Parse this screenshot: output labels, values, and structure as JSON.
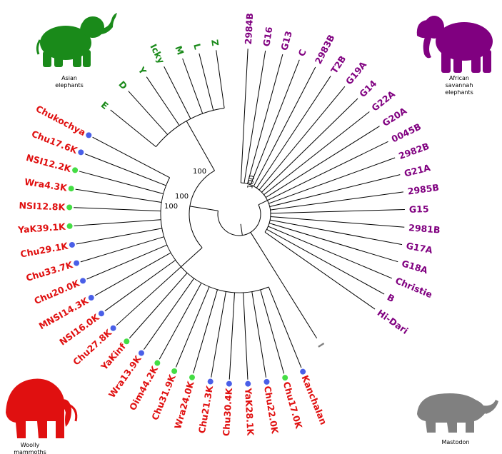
{
  "colors": {
    "asian": "#1a8a1a",
    "african": "#800080",
    "mammoth": "#e01010",
    "mastodon": "#808080",
    "branch": "#000000",
    "dot_blue": "#4a5fe8",
    "dot_green": "#44dd44"
  },
  "groups": {
    "asian": "Asian elephants",
    "african": "African savannah elephants",
    "mammoth": "Woolly mammoths",
    "mastodon": "Mastodon"
  },
  "group_lines": {
    "asian": [
      "Asian",
      "elephants"
    ],
    "african": [
      "African",
      "savannah",
      "elephants"
    ],
    "mammoth": [
      "Woolly",
      "mammoths"
    ],
    "mastodon": [
      "Mastodon"
    ]
  },
  "bootstrap": [
    "100",
    "100",
    "100",
    "100"
  ],
  "taxa": [
    {
      "name": "2984B",
      "group": "african",
      "dot": null
    },
    {
      "name": "G16",
      "group": "african",
      "dot": null
    },
    {
      "name": "G13",
      "group": "african",
      "dot": null
    },
    {
      "name": "C",
      "group": "african",
      "dot": null
    },
    {
      "name": "2983B",
      "group": "african",
      "dot": null
    },
    {
      "name": "T2B",
      "group": "african",
      "dot": null
    },
    {
      "name": "G19A",
      "group": "african",
      "dot": null
    },
    {
      "name": "G14",
      "group": "african",
      "dot": null
    },
    {
      "name": "G22A",
      "group": "african",
      "dot": null
    },
    {
      "name": "G20A",
      "group": "african",
      "dot": null
    },
    {
      "name": "0045B",
      "group": "african",
      "dot": null
    },
    {
      "name": "2982B",
      "group": "african",
      "dot": null
    },
    {
      "name": "G21A",
      "group": "african",
      "dot": null
    },
    {
      "name": "2985B",
      "group": "african",
      "dot": null
    },
    {
      "name": "G15",
      "group": "african",
      "dot": null
    },
    {
      "name": "2981B",
      "group": "african",
      "dot": null
    },
    {
      "name": "G17A",
      "group": "african",
      "dot": null
    },
    {
      "name": "G18A",
      "group": "african",
      "dot": null
    },
    {
      "name": "Christie",
      "group": "african",
      "dot": null
    },
    {
      "name": "B",
      "group": "african",
      "dot": null
    },
    {
      "name": "Hi-Dari",
      "group": "african",
      "dot": null
    },
    {
      "name": "I",
      "group": "mastodon",
      "dot": null
    },
    {
      "name": "Kanchalan",
      "group": "mammoth",
      "dot": "blue"
    },
    {
      "name": "Chu17.0K",
      "group": "mammoth",
      "dot": "green"
    },
    {
      "name": "Chu22.0K",
      "group": "mammoth",
      "dot": "blue"
    },
    {
      "name": "YaK28.1K",
      "group": "mammoth",
      "dot": "blue"
    },
    {
      "name": "Chu30.4K",
      "group": "mammoth",
      "dot": "blue"
    },
    {
      "name": "Chu21.3K",
      "group": "mammoth",
      "dot": "blue"
    },
    {
      "name": "Wra24.0K",
      "group": "mammoth",
      "dot": "green"
    },
    {
      "name": "Chu31.9K",
      "group": "mammoth",
      "dot": "green"
    },
    {
      "name": "Oim44.2K",
      "group": "mammoth",
      "dot": "green"
    },
    {
      "name": "Wra13.9K",
      "group": "mammoth",
      "dot": "blue"
    },
    {
      "name": "YaKinf",
      "group": "mammoth",
      "dot": "green"
    },
    {
      "name": "Chu27.8K",
      "group": "mammoth",
      "dot": "blue"
    },
    {
      "name": "NSI16.0K",
      "group": "mammoth",
      "dot": "blue"
    },
    {
      "name": "MNSI14.3K",
      "group": "mammoth",
      "dot": "blue"
    },
    {
      "name": "Chu20.0K",
      "group": "mammoth",
      "dot": "blue"
    },
    {
      "name": "Chu33.7K",
      "group": "mammoth",
      "dot": "blue"
    },
    {
      "name": "Chu29.1K",
      "group": "mammoth",
      "dot": "blue"
    },
    {
      "name": "YaK39.1K",
      "group": "mammoth",
      "dot": "green"
    },
    {
      "name": "NSI12.8K",
      "group": "mammoth",
      "dot": "green"
    },
    {
      "name": "Wra4.3K",
      "group": "mammoth",
      "dot": "green"
    },
    {
      "name": "NSI12.2K",
      "group": "mammoth",
      "dot": "green"
    },
    {
      "name": "Chu17.6K",
      "group": "mammoth",
      "dot": "blue"
    },
    {
      "name": "Chukochya",
      "group": "mammoth",
      "dot": "blue"
    },
    {
      "name": "E",
      "group": "asian",
      "dot": null
    },
    {
      "name": "D",
      "group": "asian",
      "dot": null
    },
    {
      "name": "Y",
      "group": "asian",
      "dot": null
    },
    {
      "name": "Icky",
      "group": "asian",
      "dot": null
    },
    {
      "name": "M",
      "group": "asian",
      "dot": null
    },
    {
      "name": "L",
      "group": "asian",
      "dot": null
    },
    {
      "name": "Z",
      "group": "asian",
      "dot": null
    }
  ]
}
